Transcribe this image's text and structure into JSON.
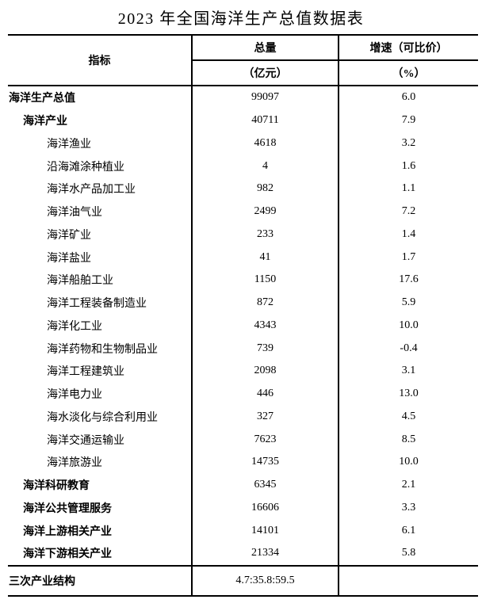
{
  "title": "2023 年全国海洋生产总值数据表",
  "colors": {
    "text": "#000000",
    "border": "#000000",
    "background": "#ffffff"
  },
  "table": {
    "header": {
      "indicator": "指标",
      "total": "总量",
      "total_unit": "（亿元）",
      "growth": "增速（可比价）",
      "growth_unit": "（%）"
    },
    "rows": [
      {
        "indicator": "海洋生产总值",
        "total": "99097",
        "growth": "6.0",
        "level": 0,
        "bold": true
      },
      {
        "indicator": "海洋产业",
        "total": "40711",
        "growth": "7.9",
        "level": 1,
        "bold": true
      },
      {
        "indicator": "海洋渔业",
        "total": "4618",
        "growth": "3.2",
        "level": 2,
        "bold": false
      },
      {
        "indicator": "沿海滩涂种植业",
        "total": "4",
        "growth": "1.6",
        "level": 2,
        "bold": false
      },
      {
        "indicator": "海洋水产品加工业",
        "total": "982",
        "growth": "1.1",
        "level": 2,
        "bold": false
      },
      {
        "indicator": "海洋油气业",
        "total": "2499",
        "growth": "7.2",
        "level": 2,
        "bold": false
      },
      {
        "indicator": "海洋矿业",
        "total": "233",
        "growth": "1.4",
        "level": 2,
        "bold": false
      },
      {
        "indicator": "海洋盐业",
        "total": "41",
        "growth": "1.7",
        "level": 2,
        "bold": false
      },
      {
        "indicator": "海洋船舶工业",
        "total": "1150",
        "growth": "17.6",
        "level": 2,
        "bold": false
      },
      {
        "indicator": "海洋工程装备制造业",
        "total": "872",
        "growth": "5.9",
        "level": 2,
        "bold": false
      },
      {
        "indicator": "海洋化工业",
        "total": "4343",
        "growth": "10.0",
        "level": 2,
        "bold": false
      },
      {
        "indicator": "海洋药物和生物制品业",
        "total": "739",
        "growth": "-0.4",
        "level": 2,
        "bold": false
      },
      {
        "indicator": "海洋工程建筑业",
        "total": "2098",
        "growth": "3.1",
        "level": 2,
        "bold": false
      },
      {
        "indicator": "海洋电力业",
        "total": "446",
        "growth": "13.0",
        "level": 2,
        "bold": false
      },
      {
        "indicator": "海水淡化与综合利用业",
        "total": "327",
        "growth": "4.5",
        "level": 2,
        "bold": false
      },
      {
        "indicator": "海洋交通运输业",
        "total": "7623",
        "growth": "8.5",
        "level": 2,
        "bold": false
      },
      {
        "indicator": "海洋旅游业",
        "total": "14735",
        "growth": "10.0",
        "level": 2,
        "bold": false
      },
      {
        "indicator": "海洋科研教育",
        "total": "6345",
        "growth": "2.1",
        "level": 1,
        "bold": true
      },
      {
        "indicator": "海洋公共管理服务",
        "total": "16606",
        "growth": "3.3",
        "level": 1,
        "bold": true
      },
      {
        "indicator": "海洋上游相关产业",
        "total": "14101",
        "growth": "6.1",
        "level": 1,
        "bold": true
      },
      {
        "indicator": "海洋下游相关产业",
        "total": "21334",
        "growth": "5.8",
        "level": 1,
        "bold": true
      }
    ],
    "footer": {
      "indicator": "三次产业结构",
      "total": "4.7:35.8:59.5",
      "growth": ""
    }
  }
}
